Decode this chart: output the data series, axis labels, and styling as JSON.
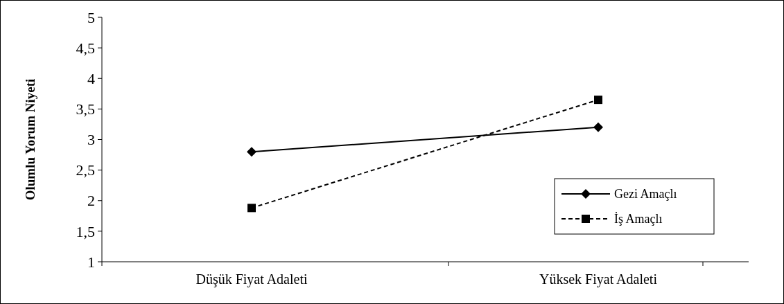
{
  "chart_data": {
    "type": "line",
    "ylabel": "Olumlu Yorum Niyeti",
    "categories": [
      "Düşük Fiyat Adaleti",
      "Yüksek Fiyat Adaleti"
    ],
    "series": [
      {
        "name": "Gezi Amaçlı",
        "color": "#000000",
        "values": [
          2.8,
          3.2
        ],
        "marker": "diamond",
        "line_style": "solid"
      },
      {
        "name": "İş Amaçlı",
        "color": "#000000",
        "values": [
          1.88,
          3.65
        ],
        "marker": "square",
        "line_style": "dashed"
      }
    ],
    "ylim": [
      1,
      5
    ],
    "yticks": [
      1,
      {
        "value": 1.5,
        "label": "1,5"
      },
      2,
      {
        "value": 2.5,
        "label": "2,5"
      },
      3,
      {
        "value": 3.5,
        "label": "3,5"
      },
      4,
      {
        "value": 4.5,
        "label": "4,5"
      },
      5
    ],
    "grid": false,
    "legend": "bottom right"
  }
}
